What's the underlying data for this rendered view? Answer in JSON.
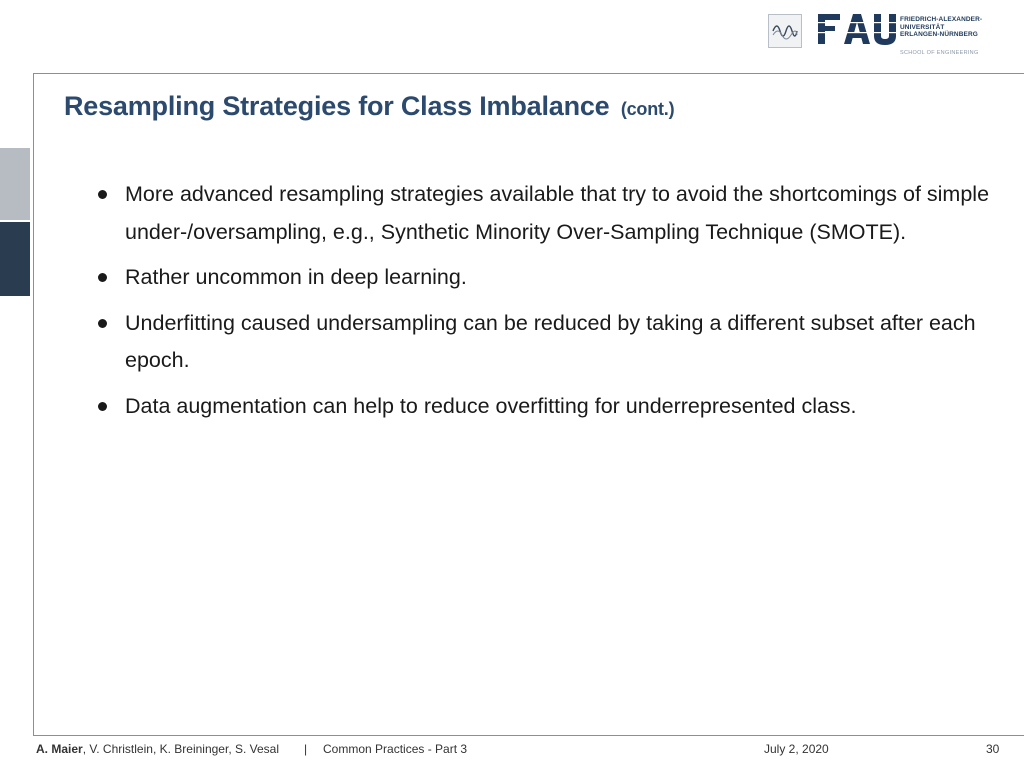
{
  "header": {
    "fau_letters": "FAU",
    "university_lines": "FRIEDRICH-ALEXANDER-\nUNIVERSITÄT\nERLANGEN-NÜRNBERG",
    "school": "SCHOOL OF ENGINEERING",
    "brand_color": "#1f3a5c"
  },
  "slide": {
    "title": "Resampling Strategies for Class Imbalance",
    "title_suffix": "(cont.)",
    "title_color": "#2c4a6e",
    "bullets": [
      "More advanced resampling strategies available that try to avoid the shortcomings of simple under-/oversampling, e.g., Synthetic Minority Over-Sampling Technique (SMOTE).",
      "Rather uncommon in deep learning.",
      "Underfitting caused undersampling can be reduced by taking a different subset after each epoch.",
      "Data augmentation can help to reduce overfitting for underrepresented class."
    ]
  },
  "footer": {
    "lead_author": "A. Maier",
    "coauthors": ", V. Christlein, K. Breininger, S. Vesal",
    "separator": "|",
    "course": "Common Practices - Part 3",
    "date": "July 2, 2020",
    "page": "30"
  }
}
